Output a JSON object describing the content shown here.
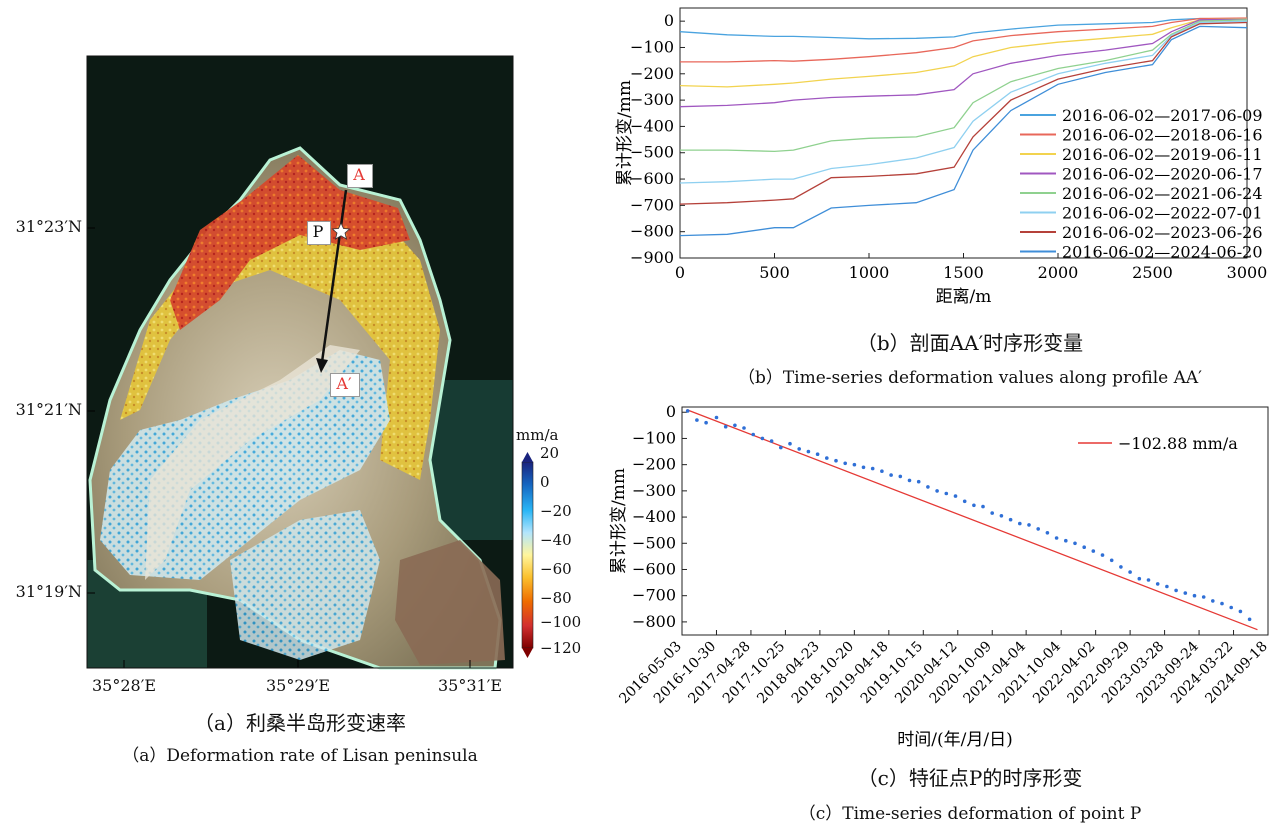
{
  "panel_a": {
    "caption_cn": "（a）利桑半岛形变速率",
    "caption_en": "（a）Deformation rate of Lisan peninsula",
    "lat_labels": [
      "31°23′N",
      "31°21′N",
      "31°19′N"
    ],
    "lon_labels": [
      "35°28′E",
      "35°29′E",
      "35°31′E"
    ],
    "label_A": "A",
    "label_A_prime": "A′",
    "label_P": "P",
    "colorbar": {
      "unit": "mm/a",
      "ticks": [
        "20",
        "0",
        "−20",
        "−40",
        "−60",
        "−80",
        "−100",
        "−120"
      ],
      "colors": [
        "#1a237e",
        "#1565c0",
        "#29b6f6",
        "#b3e5fc",
        "#fff59d",
        "#fbc02d",
        "#ef6c00",
        "#d32f2f",
        "#7f0000"
      ]
    }
  },
  "panel_b": {
    "caption_cn": "（b）剖面AA′时序形变量",
    "caption_en": "（b）Time-series deformation values along profile AA′"
  },
  "panel_c": {
    "caption_cn": "（c）特征点P的时序形变",
    "caption_en": "（c）Time-series deformation of point P"
  },
  "chart_data": [
    {
      "type": "line",
      "xlabel": "距离/m",
      "ylabel": "累计形变/mm",
      "xlim": [
        0,
        3000
      ],
      "ylim": [
        -900,
        50
      ],
      "xticks": [
        0,
        500,
        1000,
        1500,
        2000,
        2500,
        3000
      ],
      "yticks": [
        0,
        -100,
        -200,
        -300,
        -400,
        -500,
        -600,
        -700,
        -800,
        -900
      ],
      "legend": "right",
      "x": [
        0,
        250,
        500,
        600,
        800,
        1000,
        1250,
        1450,
        1550,
        1750,
        2000,
        2250,
        2500,
        2600,
        2750,
        3000
      ],
      "series": [
        {
          "name": "2016-06-02—2017-06-09",
          "color": "#4aa3df",
          "values": [
            -40,
            -52,
            -58,
            -58,
            -62,
            -67,
            -65,
            -60,
            -45,
            -30,
            -15,
            -10,
            -5,
            5,
            10,
            8
          ]
        },
        {
          "name": "2016-06-02—2018-06-16",
          "color": "#e8675a",
          "values": [
            -155,
            -155,
            -150,
            -152,
            -145,
            -135,
            -120,
            -100,
            -75,
            -55,
            -40,
            -30,
            -20,
            -5,
            10,
            12
          ]
        },
        {
          "name": "2016-06-02—2019-06-11",
          "color": "#f2d34f",
          "values": [
            -245,
            -250,
            -240,
            -235,
            -220,
            -210,
            -195,
            -170,
            -135,
            -100,
            -80,
            -65,
            -50,
            -25,
            5,
            10
          ]
        },
        {
          "name": "2016-06-02—2020-06-17",
          "color": "#a057c0",
          "values": [
            -325,
            -320,
            -310,
            -300,
            -290,
            -285,
            -280,
            -260,
            -200,
            -160,
            -130,
            -110,
            -85,
            -40,
            5,
            8
          ]
        },
        {
          "name": "2016-06-02—2021-06-24",
          "color": "#8fd18f",
          "values": [
            -490,
            -490,
            -495,
            -490,
            -455,
            -445,
            -440,
            -405,
            -310,
            -230,
            -180,
            -150,
            -110,
            -50,
            0,
            5
          ]
        },
        {
          "name": "2016-06-02—2022-07-01",
          "color": "#8fd0f0",
          "values": [
            -615,
            -610,
            -600,
            -600,
            -560,
            -545,
            -520,
            -480,
            -380,
            -270,
            -200,
            -160,
            -130,
            -55,
            -5,
            0
          ]
        },
        {
          "name": "2016-06-02—2023-06-26",
          "color": "#b5413a",
          "values": [
            -695,
            -690,
            -680,
            -675,
            -595,
            -590,
            -580,
            -555,
            -440,
            -300,
            -220,
            -180,
            -150,
            -60,
            -10,
            -5
          ]
        },
        {
          "name": "2016-06-02—2024-06-20",
          "color": "#3f8ed8",
          "values": [
            -815,
            -810,
            -785,
            -785,
            -710,
            -700,
            -690,
            -640,
            -490,
            -340,
            -240,
            -195,
            -165,
            -70,
            -20,
            -25
          ]
        }
      ]
    },
    {
      "type": "scatter",
      "xlabel": "时间/(年/月/日)",
      "ylabel": "累计形变/mm",
      "ylim": [
        -850,
        20
      ],
      "yticks": [
        0,
        -100,
        -200,
        -300,
        -400,
        -500,
        -600,
        -700,
        -800
      ],
      "xticks": [
        "2016-05-03",
        "2016-10-30",
        "2017-04-28",
        "2017-10-25",
        "2018-04-23",
        "2018-10-20",
        "2019-04-18",
        "2019-10-15",
        "2020-04-12",
        "2020-10-09",
        "2021-04-04",
        "2021-10-04",
        "2022-04-02",
        "2022-09-29",
        "2023-03-28",
        "2023-09-24",
        "2024-03-22",
        "2024-09-18"
      ],
      "xlim": [
        "2016-05-03",
        "2024-09-18"
      ],
      "legend": "top-right",
      "fit": {
        "label": "−102.88 mm/a",
        "slope": -102.88,
        "color": "#e53935"
      },
      "point_color": "#2f6fd6",
      "series": [
        {
          "x": [
            "2016-06-02",
            "2016-07-20",
            "2016-09-06",
            "2016-10-30",
            "2016-12-17",
            "2017-02-03",
            "2017-03-23",
            "2017-05-10",
            "2017-06-27",
            "2017-08-14",
            "2017-10-01",
            "2017-11-18",
            "2018-01-05",
            "2018-02-22",
            "2018-04-11",
            "2018-05-29",
            "2018-07-16",
            "2018-09-02",
            "2018-10-20",
            "2018-12-07",
            "2019-01-24",
            "2019-03-13",
            "2019-04-30",
            "2019-06-17",
            "2019-08-04",
            "2019-09-21",
            "2019-11-08",
            "2019-12-26",
            "2020-02-12",
            "2020-03-31",
            "2020-05-18",
            "2020-07-05",
            "2020-08-22",
            "2020-10-09",
            "2020-11-26",
            "2021-01-13",
            "2021-03-02",
            "2021-04-19",
            "2021-06-06",
            "2021-07-24",
            "2021-09-10",
            "2021-10-28",
            "2021-12-15",
            "2022-02-01",
            "2022-03-21",
            "2022-05-08",
            "2022-06-25",
            "2022-08-12",
            "2022-09-29",
            "2022-11-16",
            "2023-01-03",
            "2023-02-20",
            "2023-04-09",
            "2023-05-27",
            "2023-07-14",
            "2023-08-31",
            "2023-10-18",
            "2023-12-05",
            "2024-01-22",
            "2024-03-10",
            "2024-04-27",
            "2024-06-14"
          ],
          "values": [
            5,
            -30,
            -40,
            -20,
            -55,
            -50,
            -60,
            -85,
            -100,
            -110,
            -135,
            -120,
            -140,
            -150,
            -160,
            -175,
            -185,
            -195,
            -200,
            -210,
            -215,
            -225,
            -240,
            -245,
            -260,
            -265,
            -285,
            -300,
            -310,
            -320,
            -340,
            -355,
            -360,
            -385,
            -395,
            -410,
            -425,
            -430,
            -445,
            -460,
            -480,
            -490,
            -500,
            -515,
            -530,
            -545,
            -565,
            -590,
            -610,
            -635,
            -640,
            -655,
            -665,
            -680,
            -690,
            -700,
            -705,
            -720,
            -730,
            -745,
            -760,
            -790
          ]
        }
      ]
    }
  ]
}
